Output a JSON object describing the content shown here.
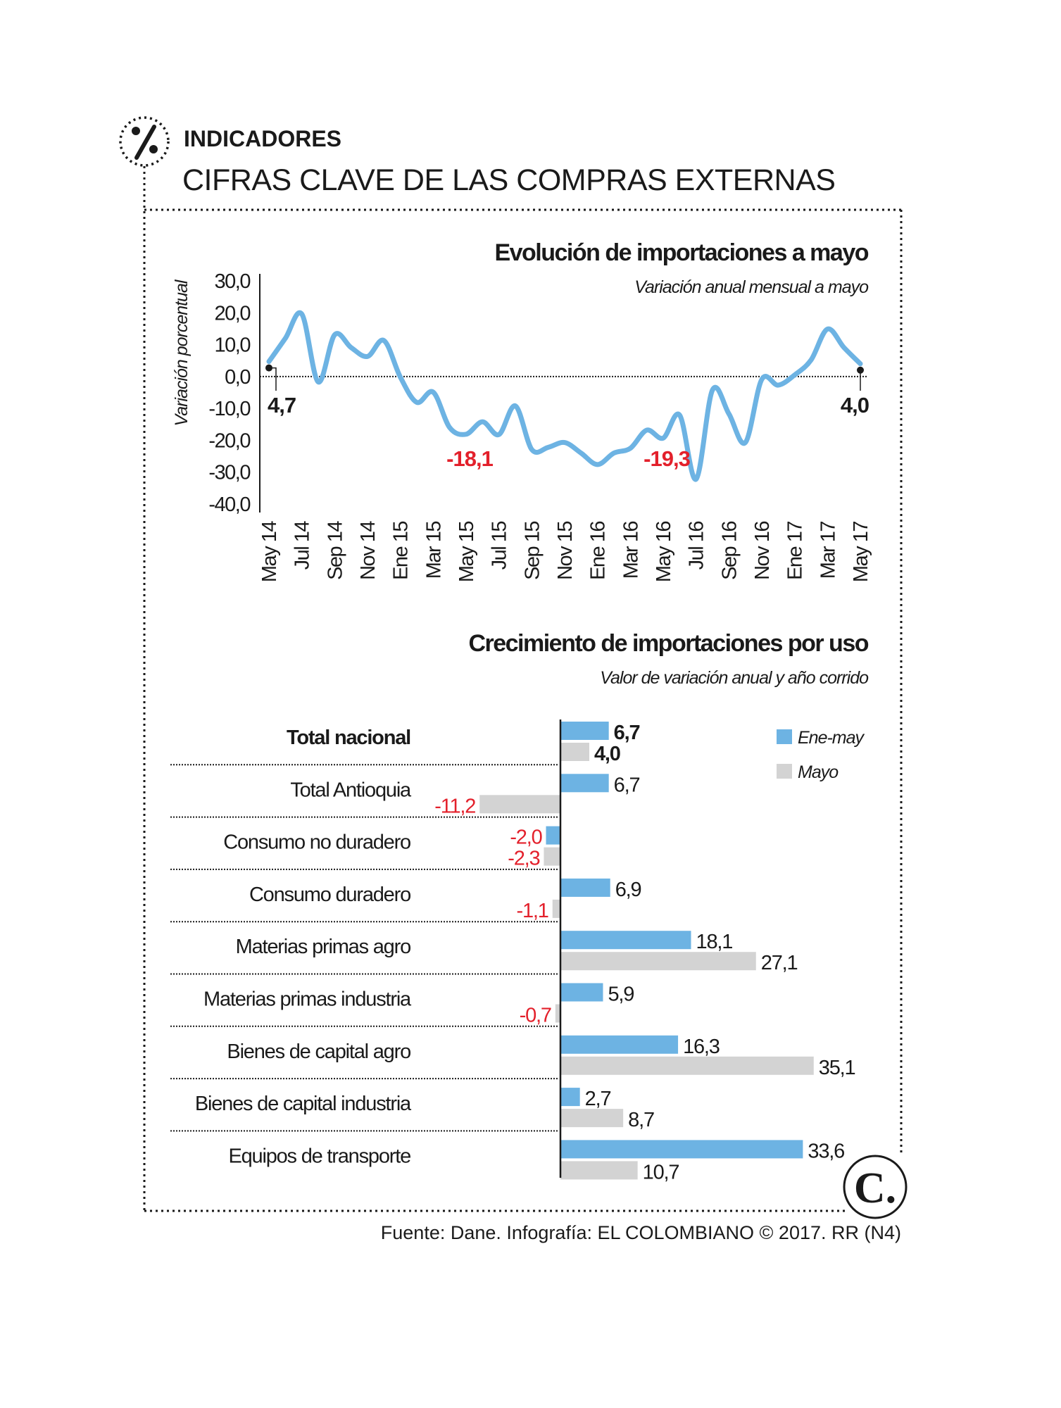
{
  "header": {
    "section": "INDICADORES",
    "title": "CIFRAS CLAVE DE LAS COMPRAS EXTERNAS",
    "icon": "percent-icon"
  },
  "footer": {
    "source": "Fuente: Dane. Infografía: EL COLOMBIANO © 2017. RR (N4)",
    "logo_text": "C."
  },
  "colors": {
    "line": "#6db3e3",
    "ene_may": "#6db3e3",
    "mayo": "#d3d3d3",
    "negative": "#e3202b",
    "text": "#1a1a1a"
  },
  "chart_data": [
    {
      "type": "line",
      "title": "Evolución de importaciones a mayo",
      "subtitle": "Variación anual mensual a mayo",
      "ylabel": "Variación porcentual",
      "ylim": [
        -40,
        30
      ],
      "yticks": [
        "30,0",
        "20,0",
        "10,0",
        "0,0",
        "-10,0",
        "-20,0",
        "-30,0",
        "-40,0"
      ],
      "ytick_values": [
        30,
        20,
        10,
        0,
        -10,
        -20,
        -30,
        -40
      ],
      "xtick_labels": [
        "May 14",
        "Jul 14",
        "Sep 14",
        "Nov 14",
        "Ene 15",
        "Mar 15",
        "May 15",
        "Jul 15",
        "Sep 15",
        "Nov 15",
        "Ene 16",
        "Mar 16",
        "May 16",
        "Jul 16",
        "Sep 16",
        "Nov 16",
        "Ene 17",
        "Mar 17",
        "May 17"
      ],
      "x": [
        "May 14",
        "Jun 14",
        "Jul 14",
        "Ago 14",
        "Sep 14",
        "Oct 14",
        "Nov 14",
        "Dic 14",
        "Ene 15",
        "Feb 15",
        "Mar 15",
        "Abr 15",
        "May 15",
        "Jun 15",
        "Jul 15",
        "Ago 15",
        "Sep 15",
        "Oct 15",
        "Nov 15",
        "Dic 15",
        "Ene 16",
        "Feb 16",
        "Mar 16",
        "Abr 16",
        "May 16",
        "Jun 16",
        "Jul 16",
        "Ago 16",
        "Sep 16",
        "Oct 16",
        "Nov 16",
        "Dic 16",
        "Ene 17",
        "Feb 17",
        "Mar 17",
        "Abr 17",
        "May 17"
      ],
      "values": [
        4.7,
        12.0,
        19.6,
        -1.7,
        13.1,
        9.1,
        6.3,
        11.3,
        -0.2,
        -8.1,
        -4.9,
        -16.0,
        -18.1,
        -14.2,
        -18.2,
        -9.2,
        -22.9,
        -22.2,
        -20.7,
        -24.0,
        -27.6,
        -24.0,
        -22.5,
        -16.8,
        -19.3,
        -12.1,
        -32.2,
        -4.2,
        -11.7,
        -20.7,
        -0.9,
        -2.7,
        0.5,
        5.2,
        14.9,
        9.1,
        4.0
      ],
      "reference_line": 0,
      "annotations": [
        {
          "x": "May 14",
          "label": "4,7",
          "color": "#1a1a1a"
        },
        {
          "x": "May 15",
          "label": "-18,1",
          "color": "#e3202b"
        },
        {
          "x": "May 16",
          "label": "-19,3",
          "color": "#e3202b"
        },
        {
          "x": "May 17",
          "label": "4,0",
          "color": "#1a1a1a"
        }
      ]
    },
    {
      "type": "bar",
      "orientation": "horizontal",
      "title": "Crecimiento de importaciones por uso",
      "subtitle": "Valor de variación anual y año corrido",
      "legend_position": "top-right",
      "categories": [
        "Total nacional",
        "Total Antioquia",
        "Consumo no duradero",
        "Consumo duradero",
        "Materias primas agro",
        "Materias primas industria",
        "Bienes de capital agro",
        "Bienes de capital industria",
        "Equipos de transporte"
      ],
      "series": [
        {
          "name": "Ene-may",
          "values": [
            6.7,
            6.7,
            -2.0,
            6.9,
            18.1,
            5.9,
            16.3,
            2.7,
            33.6
          ],
          "labels": [
            "6,7",
            "6,7",
            "-2,0",
            "6,9",
            "18,1",
            "5,9",
            "16,3",
            "2,7",
            "33,6"
          ]
        },
        {
          "name": "Mayo",
          "values": [
            4.0,
            -11.2,
            -2.3,
            -1.1,
            27.1,
            -0.7,
            35.1,
            8.7,
            10.7
          ],
          "labels": [
            "4,0",
            "-11,2",
            "-2,3",
            "-1,1",
            "27,1",
            "-0,7",
            "35,1",
            "8,7",
            "10,7"
          ]
        }
      ]
    }
  ]
}
